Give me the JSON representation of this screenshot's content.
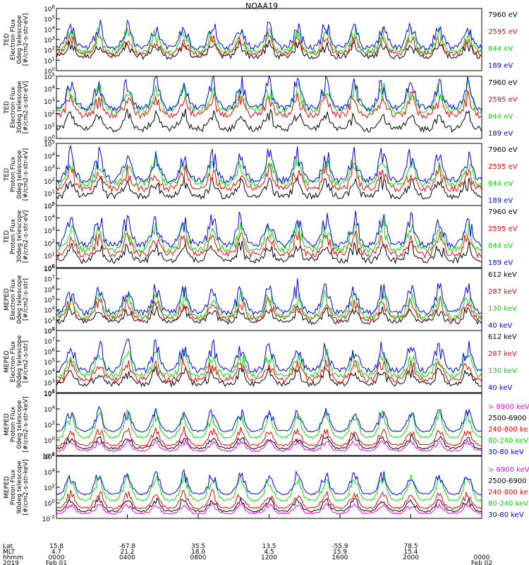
{
  "title": "NOAA19",
  "colors": {
    "black": "#000000",
    "red": "#ff0000",
    "green": "#00e000",
    "blue": "#0000ff",
    "magenta": "#ff00ff"
  },
  "chart_data": [
    {
      "type": "line",
      "panel": "ted-electron-0",
      "ylabel": [
        "TED",
        "Electron Flux",
        "0deg telescope",
        "[#/cm2-s-str-eV]"
      ],
      "ylog": true,
      "ylim_exp": [
        0,
        6
      ],
      "ytick_labels": [
        "10^0",
        "10^1",
        "10^2",
        "10^3",
        "10^4",
        "10^5",
        "10^6"
      ],
      "series": [
        {
          "name": "7960 eV",
          "color": "black"
        },
        {
          "name": "2595 eV",
          "color": "red"
        },
        {
          "name": "844 eV",
          "color": "green"
        },
        {
          "name": "189 eV",
          "color": "blue"
        }
      ]
    },
    {
      "type": "line",
      "panel": "ted-electron-30",
      "ylabel": [
        "TED",
        "Electron Flux",
        "30deg telescope",
        "[#/cm2-s-str-eV]"
      ],
      "ylog": true,
      "ylim_exp": [
        0,
        5
      ],
      "ytick_labels": [
        "10^0",
        "10^1",
        "10^2",
        "10^3",
        "10^4",
        "10^5"
      ],
      "series": [
        {
          "name": "7960 eV",
          "color": "black"
        },
        {
          "name": "2595 eV",
          "color": "red"
        },
        {
          "name": "844 eV",
          "color": "green"
        },
        {
          "name": "189 eV",
          "color": "blue"
        }
      ]
    },
    {
      "type": "line",
      "panel": "ted-proton-0",
      "ylabel": [
        "TED",
        "Proton Flux",
        "0deg telescope",
        "[#/cm2-s-str-eV]"
      ],
      "ylog": true,
      "ylim_exp": [
        0,
        5
      ],
      "ytick_labels": [
        "10^0",
        "10^1",
        "10^2",
        "10^3",
        "10^4",
        "10^5"
      ],
      "series": [
        {
          "name": "7960 eV",
          "color": "black"
        },
        {
          "name": "2595 eV",
          "color": "red"
        },
        {
          "name": "844 eV",
          "color": "green"
        },
        {
          "name": "189 eV",
          "color": "blue"
        }
      ]
    },
    {
      "type": "line",
      "panel": "ted-proton-30",
      "ylabel": [
        "TED",
        "Proton Flux",
        "30deg telescope",
        "[#/cm2-s-str-eV]"
      ],
      "ylog": true,
      "ylim_exp": [
        0,
        5
      ],
      "ytick_labels": [
        "10^0",
        "10^1",
        "10^2",
        "10^3",
        "10^4",
        "10^5"
      ],
      "series": [
        {
          "name": "7960 eV",
          "color": "black"
        },
        {
          "name": "2595 eV",
          "color": "red"
        },
        {
          "name": "844 eV",
          "color": "green"
        },
        {
          "name": "189 eV",
          "color": "blue"
        }
      ]
    },
    {
      "type": "line",
      "panel": "meped-electron-0",
      "ylabel": [
        "MEPED",
        "Electron Flux",
        "0deg telescope",
        "[#/cm2-s-str]"
      ],
      "ylog": true,
      "ylim_exp": [
        2,
        8
      ],
      "ytick_labels": [
        "10^2",
        "10^3",
        "10^4",
        "10^5",
        "10^6",
        "10^7",
        "10^8"
      ],
      "series": [
        {
          "name": "612 keV",
          "color": "black"
        },
        {
          "name": "287 keV",
          "color": "red"
        },
        {
          "name": "130 keV",
          "color": "green"
        },
        {
          "name": "40 keV",
          "color": "blue"
        }
      ]
    },
    {
      "type": "line",
      "panel": "meped-electron-90",
      "ylabel": [
        "MEPED",
        "Electron Flux",
        "90deg telescope",
        "[#/cm2-s-str]"
      ],
      "ylog": true,
      "ylim_exp": [
        2,
        8
      ],
      "ytick_labels": [
        "10^2",
        "10^3",
        "10^4",
        "10^5",
        "10^6",
        "10^7",
        "10^8"
      ],
      "series": [
        {
          "name": "612 keV",
          "color": "black"
        },
        {
          "name": "287 keV",
          "color": "red"
        },
        {
          "name": "130 keV",
          "color": "green"
        },
        {
          "name": "40 keV",
          "color": "blue"
        }
      ]
    },
    {
      "type": "line",
      "panel": "meped-proton-0",
      "ylabel": [
        "MEPED",
        "Proton Flux",
        "0deg telescope",
        "[#/cm2-s-str-keV]"
      ],
      "ylog": true,
      "ylim_exp": [
        -2,
        6
      ],
      "ytick_labels": [
        "10^-2",
        "10^0",
        "10^2",
        "10^4",
        "10^6"
      ],
      "series": [
        {
          "name": "> 6900 keV",
          "color": "magenta"
        },
        {
          "name": "2500-6900",
          "color": "black"
        },
        {
          "name": "240-800 ke",
          "color": "red"
        },
        {
          "name": "80-240 keV",
          "color": "green"
        },
        {
          "name": "30-80 keV",
          "color": "blue"
        }
      ]
    },
    {
      "type": "line",
      "panel": "meped-proton-90",
      "ylabel": [
        "MEPED",
        "Proton Flux",
        "90deg telescope",
        "[#/cm2-s-str-keV]"
      ],
      "ylog": true,
      "ylim_exp": [
        -2,
        6
      ],
      "ytick_labels": [
        "10^-2",
        "10^0",
        "10^2",
        "10^4",
        "10^6"
      ],
      "series": [
        {
          "name": "> 6900 keV",
          "color": "magenta"
        },
        {
          "name": "2500-6900",
          "color": "black"
        },
        {
          "name": "240-800 ke",
          "color": "red"
        },
        {
          "name": "80-240 keV",
          "color": "green"
        },
        {
          "name": "30-80 keV",
          "color": "blue"
        }
      ]
    }
  ],
  "xaxis": {
    "row_labels": [
      "Lat",
      "MLT",
      "hhmm",
      "2019"
    ],
    "columns": [
      {
        "lat": "15.8",
        "mlt": "4.7",
        "hhmm": "0000",
        "date": "Feb 01"
      },
      {
        "lat": "-67.8",
        "mlt": "21.2",
        "hhmm": "0400",
        "date": ""
      },
      {
        "lat": "35.5",
        "mlt": "18.0",
        "hhmm": "0800",
        "date": ""
      },
      {
        "lat": "13.5",
        "mlt": "4.5",
        "hhmm": "1200",
        "date": ""
      },
      {
        "lat": "-55.9",
        "mlt": "15.9",
        "hhmm": "1600",
        "date": ""
      },
      {
        "lat": "78.5",
        "mlt": "15.4",
        "hhmm": "2000",
        "date": ""
      },
      {
        "lat": "",
        "mlt": "",
        "hhmm": "0000",
        "date": "Feb 02"
      }
    ]
  }
}
